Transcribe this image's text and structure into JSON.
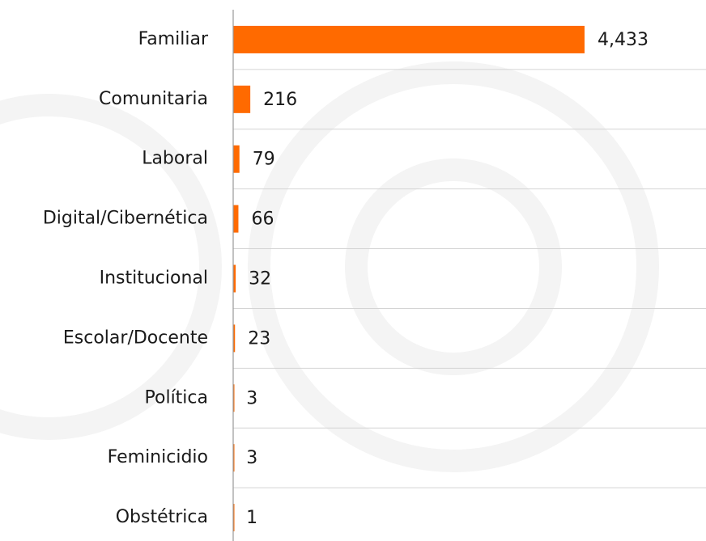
{
  "chart_data": {
    "type": "bar",
    "orientation": "horizontal",
    "categories": [
      "Familiar",
      "Comunitaria",
      "Laboral",
      "Digital/Cibernética",
      "Institucional",
      "Escolar/Docente",
      "Política",
      "Feminicidio",
      "Obstétrica"
    ],
    "values": [
      4433,
      216,
      79,
      66,
      32,
      23,
      3,
      3,
      1
    ],
    "value_labels": [
      "4,433",
      "216",
      "79",
      "66",
      "32",
      "23",
      "3",
      "3",
      "1"
    ],
    "color": "#ff6a00",
    "xlim": [
      0,
      5000
    ]
  }
}
